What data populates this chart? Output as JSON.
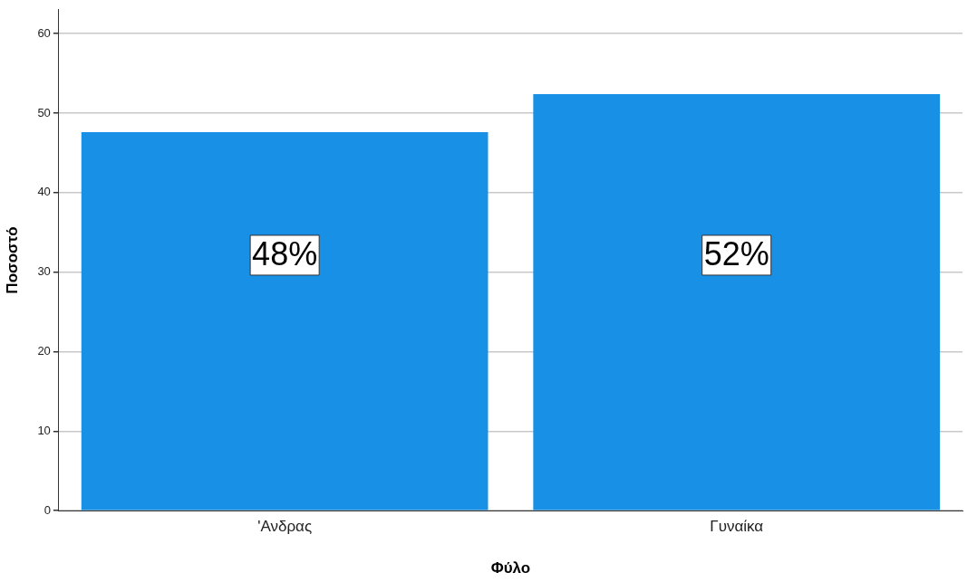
{
  "chart_data": {
    "type": "bar",
    "xlabel": "Φύλο",
    "ylabel": "Ποσοστό",
    "categories": [
      "'Ανδρας",
      "Γυναίκα"
    ],
    "values": [
      47.6,
      52.4
    ],
    "color": "#1790e6",
    "value_labels": [
      "48%",
      "52%"
    ],
    "ylim": [
      0,
      63
    ],
    "yticks": [
      0,
      10,
      20,
      30,
      40,
      50,
      60
    ],
    "grid": "y",
    "legend": false
  }
}
